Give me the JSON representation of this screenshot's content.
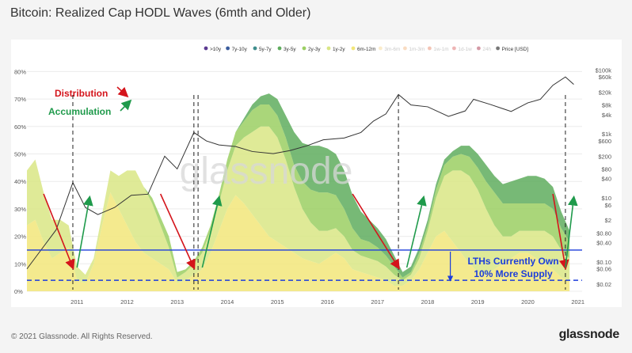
{
  "title": "Bitcoin: Realized Cap HODL Waves (6mth and Older)",
  "footer": {
    "copyright": "© 2021 Glassnode. All Rights Reserved.",
    "logo": "glassnode"
  },
  "watermark": "glassnode",
  "annotations": {
    "distribution": "Distribution",
    "accumulation": "Accumulation",
    "lth_line1": "LTHs Currently Own",
    "lth_line2": "10% More Supply"
  },
  "colors": {
    "distribution": "#d4141b",
    "accumulation": "#1f9a4b",
    "reference_line": "#1c3ddb",
    "price_line": "#333333"
  },
  "chart_data": {
    "type": "area",
    "title": "Bitcoin: Realized Cap HODL Waves (6mth and Older)",
    "x": [
      "2010-07",
      "2010-09",
      "2010-11",
      "2011-01",
      "2011-03",
      "2011-05",
      "2011-07",
      "2011-09",
      "2011-11",
      "2012-01",
      "2012-03",
      "2012-05",
      "2012-07",
      "2012-09",
      "2012-11",
      "2013-01",
      "2013-03",
      "2013-05",
      "2013-07",
      "2013-09",
      "2013-11",
      "2014-01",
      "2014-03",
      "2014-05",
      "2014-07",
      "2014-09",
      "2014-11",
      "2015-01",
      "2015-03",
      "2015-05",
      "2015-07",
      "2015-09",
      "2015-11",
      "2016-01",
      "2016-03",
      "2016-05",
      "2016-07",
      "2016-09",
      "2016-11",
      "2017-01",
      "2017-03",
      "2017-05",
      "2017-07",
      "2017-09",
      "2017-11",
      "2018-01",
      "2018-03",
      "2018-05",
      "2018-07",
      "2018-09",
      "2018-11",
      "2019-01",
      "2019-03",
      "2019-05",
      "2019-07",
      "2019-09",
      "2019-11",
      "2020-01",
      "2020-03",
      "2020-05",
      "2020-07",
      "2020-09",
      "2020-11",
      "2021-01",
      "2021-03",
      "2021-05"
    ],
    "series": [
      {
        "name": "6m-12m",
        "values": [
          24,
          26,
          18,
          12,
          14,
          16,
          4,
          3,
          10,
          24,
          36,
          30,
          24,
          18,
          14,
          12,
          10,
          8,
          3,
          4,
          6,
          8,
          14,
          22,
          30,
          35,
          32,
          28,
          24,
          20,
          18,
          16,
          14,
          12,
          11,
          10,
          12,
          14,
          12,
          8,
          7,
          6,
          5,
          4,
          2,
          2,
          4,
          8,
          14,
          20,
          22,
          18,
          14,
          10,
          7,
          6,
          8,
          10,
          12,
          14,
          14,
          12,
          10,
          8,
          5,
          4
        ]
      },
      {
        "name": "1y-2y",
        "values": [
          20,
          22,
          18,
          14,
          12,
          8,
          5,
          3,
          2,
          4,
          8,
          12,
          20,
          26,
          24,
          20,
          14,
          8,
          2,
          3,
          4,
          6,
          8,
          10,
          14,
          18,
          24,
          30,
          36,
          40,
          38,
          32,
          24,
          18,
          14,
          12,
          10,
          9,
          8,
          7,
          6,
          6,
          6,
          5,
          4,
          2,
          2,
          4,
          8,
          14,
          20,
          26,
          30,
          32,
          30,
          24,
          16,
          10,
          8,
          8,
          8,
          10,
          12,
          12,
          10,
          8
        ]
      },
      {
        "name": "2y-3y",
        "values": [
          0,
          0,
          0,
          0,
          0,
          0,
          0,
          0,
          0,
          0,
          0,
          0,
          0,
          0,
          0,
          2,
          3,
          4,
          2,
          1,
          1,
          2,
          2,
          3,
          4,
          5,
          6,
          8,
          8,
          8,
          8,
          8,
          8,
          10,
          12,
          14,
          14,
          12,
          10,
          8,
          6,
          6,
          5,
          4,
          3,
          1,
          1,
          2,
          2,
          3,
          4,
          5,
          6,
          7,
          8,
          10,
          12,
          12,
          12,
          10,
          10,
          10,
          10,
          10,
          8,
          6
        ]
      },
      {
        "name": "3y-5y",
        "values": [
          0,
          0,
          0,
          0,
          0,
          0,
          0,
          0,
          0,
          0,
          0,
          0,
          0,
          0,
          0,
          0,
          0,
          0,
          0,
          0,
          0,
          0,
          0,
          0,
          0,
          0,
          1,
          2,
          3,
          4,
          6,
          8,
          12,
          14,
          16,
          17,
          16,
          15,
          14,
          12,
          10,
          8,
          7,
          6,
          4,
          2,
          2,
          2,
          2,
          2,
          2,
          2,
          3,
          4,
          5,
          6,
          6,
          7,
          8,
          9,
          10,
          10,
          9,
          8,
          6,
          4
        ]
      }
    ],
    "price_usd": {
      "x": [
        "2010-07",
        "2010-11",
        "2011-02",
        "2011-06",
        "2011-09",
        "2011-12",
        "2012-04",
        "2012-08",
        "2012-12",
        "2013-04",
        "2013-07",
        "2013-11",
        "2014-02",
        "2014-05",
        "2014-09",
        "2015-01",
        "2015-06",
        "2015-10",
        "2016-02",
        "2016-06",
        "2016-11",
        "2017-03",
        "2017-06",
        "2017-09",
        "2017-12",
        "2018-03",
        "2018-07",
        "2018-12",
        "2019-04",
        "2019-06",
        "2019-10",
        "2020-03",
        "2020-07",
        "2020-10",
        "2021-01",
        "2021-04",
        "2021-06"
      ],
      "values": [
        0.06,
        0.3,
        1,
        30,
        5,
        3,
        5,
        12,
        13,
        200,
        80,
        1100,
        600,
        450,
        400,
        280,
        240,
        300,
        420,
        650,
        740,
        1100,
        2500,
        4200,
        17000,
        8000,
        7000,
        3500,
        5200,
        12000,
        8300,
        5000,
        9300,
        12000,
        33000,
        60000,
        35000
      ]
    },
    "legend": [
      ">10y",
      "7y-10y",
      "5y-7y",
      "3y-5y",
      "2y-3y",
      "1y-2y",
      "6m-12m",
      "3m-6m",
      "1m-3m",
      "1w-1m",
      "1d-1w",
      "24h",
      "Price [USD]"
    ],
    "legend_colors": [
      "#5b3a91",
      "#3a5c9d",
      "#3f8e8d",
      "#5fad5e",
      "#9bcf63",
      "#d9e685",
      "#f2e67a",
      "#f4d48c",
      "#f2b277",
      "#e57c5c",
      "#d95a5a",
      "#a0203a",
      "#777777"
    ],
    "legend_faded": [
      false,
      false,
      false,
      false,
      false,
      false,
      false,
      true,
      true,
      true,
      true,
      true,
      false
    ],
    "legend_placement": "top-right",
    "x_ticks": [
      "2011",
      "2012",
      "2013",
      "2014",
      "2015",
      "2016",
      "2017",
      "2018",
      "2019",
      "2020",
      "2021"
    ],
    "y_ticks": [
      "0%",
      "10%",
      "20%",
      "30%",
      "40%",
      "50%",
      "60%",
      "70%",
      "80%"
    ],
    "y_range": [
      0,
      80
    ],
    "y2_ticks": [
      "$100k",
      "$60k",
      "$20k",
      "$8k",
      "$4k",
      "$1k",
      "$600",
      "$200",
      "$80",
      "$40",
      "$10",
      "$6",
      "$2",
      "$0.80",
      "$0.40",
      "$0.10",
      "$0.06",
      "$0.02"
    ],
    "y2_tick_values": [
      100000,
      60000,
      20000,
      8000,
      4000,
      1000,
      600,
      200,
      80,
      40,
      10,
      6,
      2,
      0.8,
      0.4,
      0.1,
      0.06,
      0.02
    ],
    "y2_scale": "log",
    "reference_lines": {
      "solid_percent": 15,
      "dashed_percent": 4
    },
    "cycle_markers": [
      "2011-06",
      "2013-11",
      "2013-12",
      "2017-12",
      "2021-04"
    ],
    "distribution_arrows": [
      [
        "2010-11",
        "2011-06"
      ],
      [
        "2013-03",
        "2013-11"
      ],
      [
        "2017-01",
        "2017-12"
      ],
      [
        "2021-01",
        "2021-04"
      ]
    ],
    "accumulation_arrows": [
      [
        "2011-07",
        "2011-10"
      ],
      [
        "2014-01",
        "2014-05"
      ],
      [
        "2018-02",
        "2018-06"
      ],
      [
        "2021-04",
        "2021-06"
      ]
    ]
  }
}
